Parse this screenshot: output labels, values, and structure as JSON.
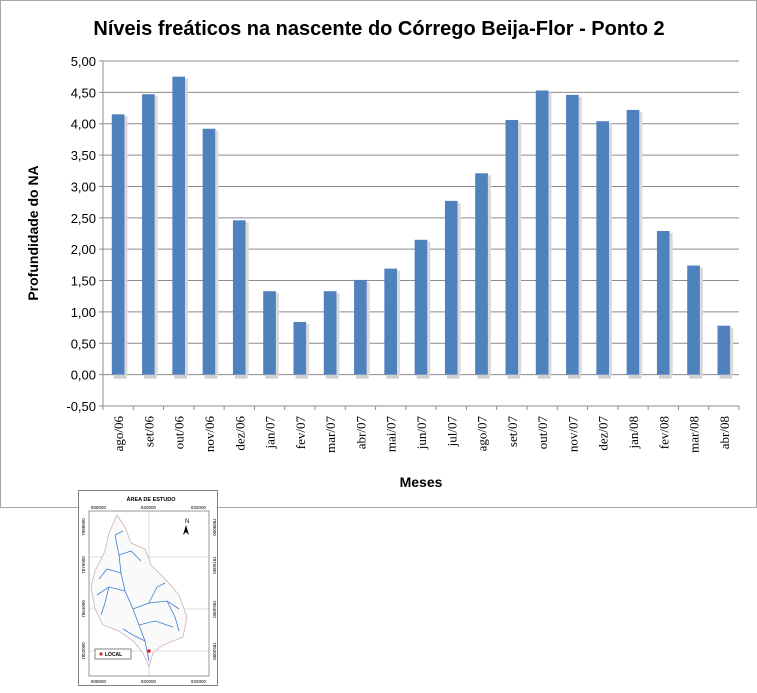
{
  "chart_data": {
    "type": "bar",
    "title": "Níveis freáticos na nascente do Córrego Beija-Flor - Ponto 2",
    "xlabel": "Meses",
    "ylabel": "Profundidade do NA",
    "ylim": [
      -0.5,
      5.0
    ],
    "yticks": [
      "-0,50",
      "0,00",
      "0,50",
      "1,00",
      "1,50",
      "2,00",
      "2,50",
      "3,00",
      "3,50",
      "4,00",
      "4,50",
      "5,00"
    ],
    "ytick_values": [
      -0.5,
      0,
      0.5,
      1.0,
      1.5,
      2.0,
      2.5,
      3.0,
      3.5,
      4.0,
      4.5,
      5.0
    ],
    "grid": true,
    "bar_color": "#4f81bd",
    "categories": [
      "ago/06",
      "set/06",
      "out/06",
      "nov/06",
      "dez/06",
      "jan/07",
      "fev/07",
      "mar/07",
      "abr/07",
      "mai/07",
      "jun/07",
      "jul/07",
      "ago/07",
      "set/07",
      "out/07",
      "nov/07",
      "dez/07",
      "jan/08",
      "fev/08",
      "mar/08",
      "abr/08"
    ],
    "values": [
      4.15,
      4.47,
      4.75,
      3.92,
      2.46,
      1.33,
      0.84,
      1.33,
      1.51,
      1.69,
      2.15,
      2.77,
      3.21,
      4.06,
      4.53,
      4.46,
      4.04,
      4.22,
      2.29,
      1.74,
      0.78
    ]
  },
  "inset_map": {
    "title": "ÁREA DE ESTUDO",
    "top_ticks": [
      "808000",
      "820000",
      "832000"
    ],
    "bottom_ticks": [
      "808000",
      "820000",
      "832000"
    ],
    "left_ticks": [
      "7888000",
      "7876000",
      "7864000",
      "7852000"
    ],
    "right_ticks": [
      "7888000",
      "7876000",
      "7864000",
      "7852000"
    ],
    "north_label": "N",
    "legend_label": "LOCAL",
    "marker_color": "#e02020",
    "river_color": "#3a7fd0"
  }
}
